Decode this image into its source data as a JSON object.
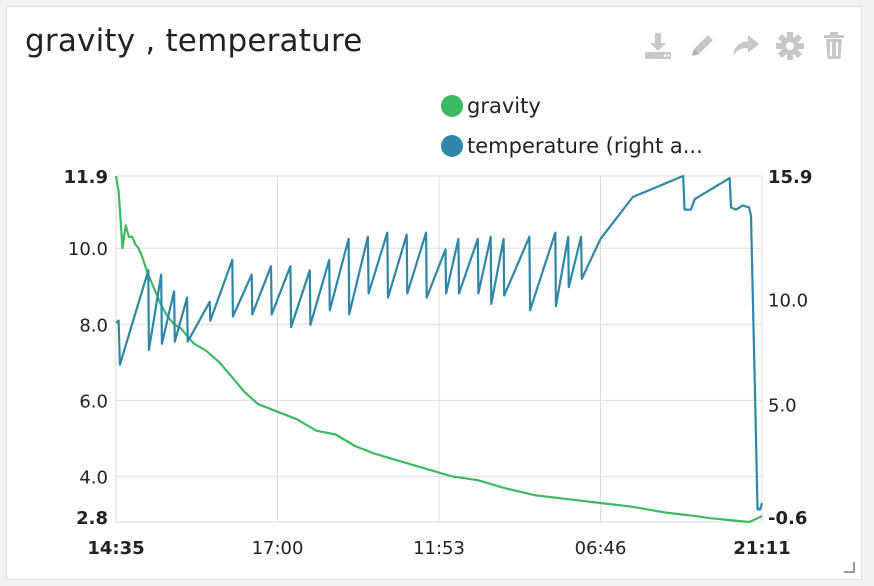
{
  "panel": {
    "title": "gravity , temperature",
    "toolbar": [
      {
        "icon": "download-icon",
        "label": "download"
      },
      {
        "icon": "pencil-icon",
        "label": "edit"
      },
      {
        "icon": "share-icon",
        "label": "share"
      },
      {
        "icon": "gear-icon",
        "label": "settings"
      },
      {
        "icon": "trash-icon",
        "label": "delete"
      }
    ]
  },
  "colors": {
    "gravity": "#3cba61",
    "temperature": "#2f86a6",
    "grid": "#dddddd",
    "icon": "#c8c8c8"
  },
  "chart_data": {
    "type": "line",
    "title": "",
    "x_ticks": [
      "14:35",
      "17:00",
      "11:53",
      "06:46",
      "21:11"
    ],
    "x_ticks_bold": [
      true,
      false,
      false,
      false,
      true
    ],
    "y_left": {
      "ticks": [
        "11.9",
        "10.0",
        "8.0",
        "6.0",
        "4.0",
        "2.8"
      ],
      "ylim": [
        2.8,
        11.9
      ]
    },
    "y_right": {
      "ticks": [
        "15.9",
        "10.0",
        "5.0",
        "-0.6"
      ],
      "ylim": [
        -0.6,
        15.9
      ]
    },
    "legend": [
      "gravity",
      "temperature (right a..."
    ],
    "legend_position": "top-center",
    "grid": true,
    "series": [
      {
        "name": "gravity",
        "axis": "left",
        "x": [
          0,
          0.4,
          1,
          1.5,
          2,
          2.5,
          3,
          3.5,
          4,
          5,
          6,
          7,
          8,
          9,
          10,
          11,
          12,
          14,
          16,
          18,
          20,
          22,
          25,
          28,
          31,
          34,
          37,
          40,
          44,
          48,
          52,
          56,
          60,
          65,
          70,
          75,
          80,
          85,
          90,
          92,
          95,
          98,
          100
        ],
        "y": [
          11.9,
          11.5,
          10.0,
          10.6,
          10.3,
          10.3,
          10.1,
          10.0,
          9.8,
          9.3,
          8.9,
          8.5,
          8.2,
          8.0,
          7.9,
          7.7,
          7.5,
          7.3,
          7.0,
          6.6,
          6.2,
          5.9,
          5.7,
          5.5,
          5.2,
          5.1,
          4.8,
          4.6,
          4.4,
          4.2,
          4.0,
          3.9,
          3.7,
          3.5,
          3.4,
          3.3,
          3.2,
          3.05,
          2.95,
          2.9,
          2.85,
          2.8,
          2.95
        ]
      },
      {
        "name": "temperature (right a...",
        "axis": "right",
        "x": [
          0,
          0.4,
          0.6,
          5,
          5.1,
          7,
          7.1,
          9,
          9.1,
          11,
          11.1,
          14.5,
          14.6,
          18,
          18.1,
          21,
          21.1,
          24,
          24.1,
          27,
          27.1,
          30,
          30.1,
          33,
          33.1,
          36,
          36.1,
          39,
          39.1,
          42,
          42.1,
          45,
          45.1,
          48,
          48.1,
          51,
          51.1,
          53,
          53.1,
          56,
          56.1,
          58,
          58.1,
          60,
          60.1,
          64,
          64.1,
          68,
          68.1,
          70,
          70.1,
          72,
          72.1,
          75,
          80,
          87.8,
          88,
          89,
          89.6,
          95,
          95.2,
          96,
          97,
          98,
          98.3,
          99,
          99.3,
          99.7,
          100
        ],
        "y": [
          8.9,
          9.0,
          6.9,
          11.4,
          7.6,
          11.2,
          7.9,
          10.4,
          8.0,
          10.1,
          8.0,
          9.9,
          9.0,
          11.9,
          9.2,
          11.2,
          9.3,
          11.6,
          9.3,
          11.6,
          8.7,
          11.4,
          8.8,
          11.9,
          9.5,
          12.9,
          9.3,
          13.0,
          10.3,
          13.2,
          10.1,
          13.1,
          10.3,
          13.2,
          10.1,
          12.4,
          10.3,
          12.9,
          10.3,
          12.9,
          10.3,
          13.0,
          9.8,
          12.9,
          10.2,
          13.0,
          9.5,
          13.2,
          9.7,
          13.0,
          10.6,
          13.0,
          11.0,
          12.9,
          14.9,
          15.9,
          14.3,
          14.3,
          14.8,
          15.8,
          14.4,
          14.3,
          14.5,
          14.4,
          14.0,
          4.5,
          0,
          0,
          0.3
        ]
      }
    ]
  }
}
